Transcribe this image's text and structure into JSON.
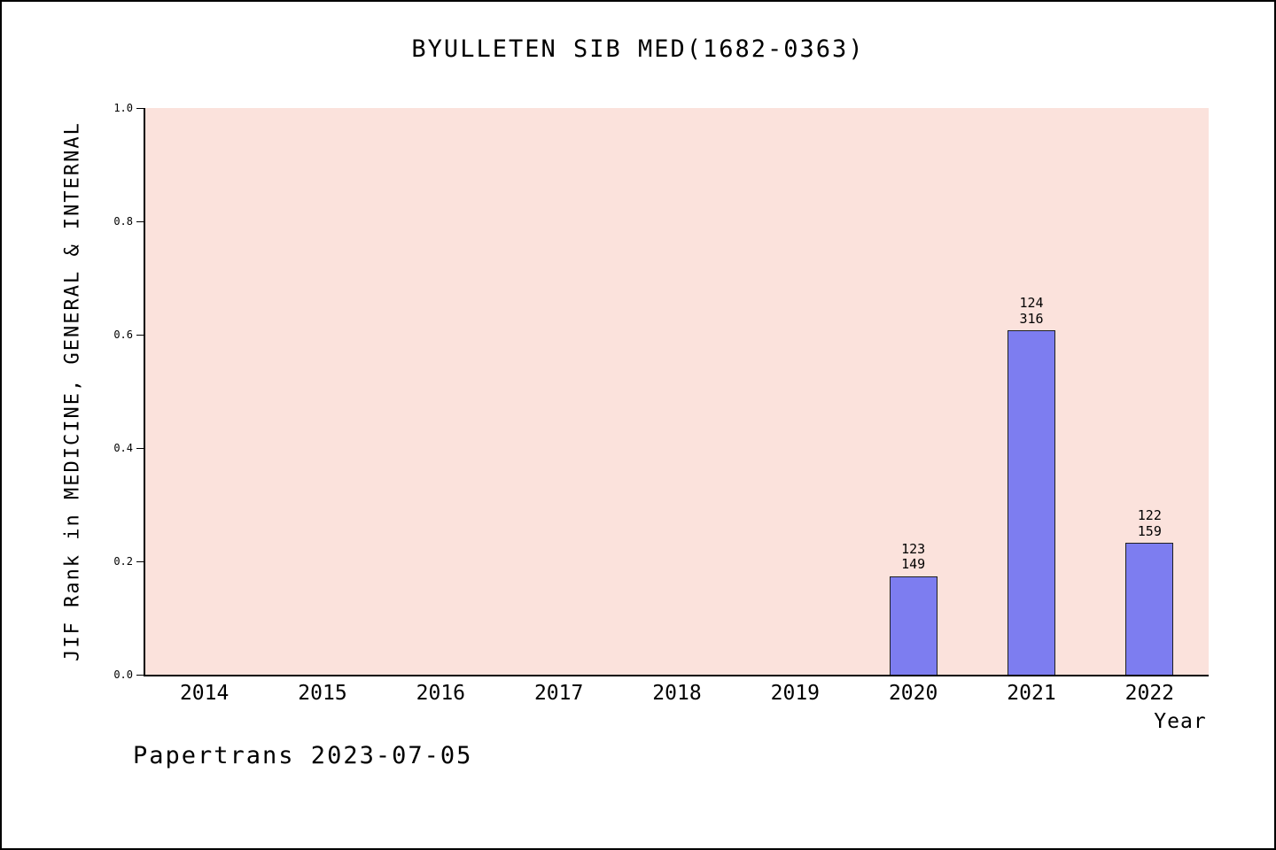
{
  "chart_data": {
    "type": "bar",
    "title": "BYULLETEN SIB MED(1682-0363)",
    "xlabel": "Year",
    "ylabel": "JIF Rank in MEDICINE, GENERAL & INTERNAL",
    "categories": [
      "2014",
      "2015",
      "2016",
      "2017",
      "2018",
      "2019",
      "2020",
      "2021",
      "2022"
    ],
    "values": [
      null,
      null,
      null,
      null,
      null,
      null,
      0.174,
      0.608,
      0.233
    ],
    "bar_labels": [
      null,
      null,
      null,
      null,
      null,
      null,
      [
        "123",
        "149"
      ],
      [
        "124",
        "316"
      ],
      [
        "122",
        "159"
      ]
    ],
    "ylim": [
      0.0,
      1.0
    ],
    "yticks": [
      "0.0",
      "0.2",
      "0.4",
      "0.6",
      "0.8",
      "1.0"
    ],
    "grid": false,
    "legend": false,
    "plot_bg": "#fbe2dc",
    "bar_color": "#7d7df0"
  },
  "footer": {
    "text": "Papertrans 2023-07-05"
  }
}
